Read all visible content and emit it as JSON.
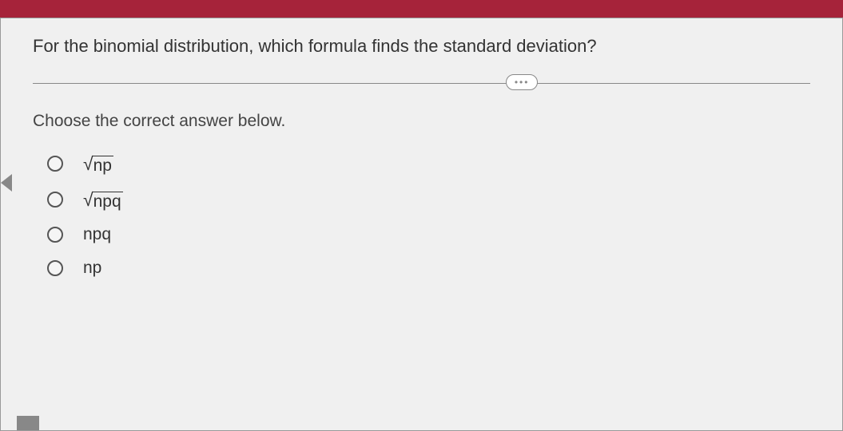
{
  "colors": {
    "header_bg": "#a6233a",
    "page_bg": "#f0f0f0",
    "text_primary": "#333333",
    "text_secondary": "#444444",
    "border": "#888888",
    "radio_border": "#555555"
  },
  "question": {
    "text": "For the binomial distribution, which formula finds the standard deviation?",
    "instruction": "Choose the correct answer below."
  },
  "divider": {
    "dots": "•••"
  },
  "options": [
    {
      "type": "sqrt",
      "arg": "np",
      "selected": false
    },
    {
      "type": "sqrt",
      "arg": "npq",
      "selected": false
    },
    {
      "type": "plain",
      "arg": "npq",
      "selected": false
    },
    {
      "type": "plain",
      "arg": "np",
      "selected": false
    }
  ]
}
